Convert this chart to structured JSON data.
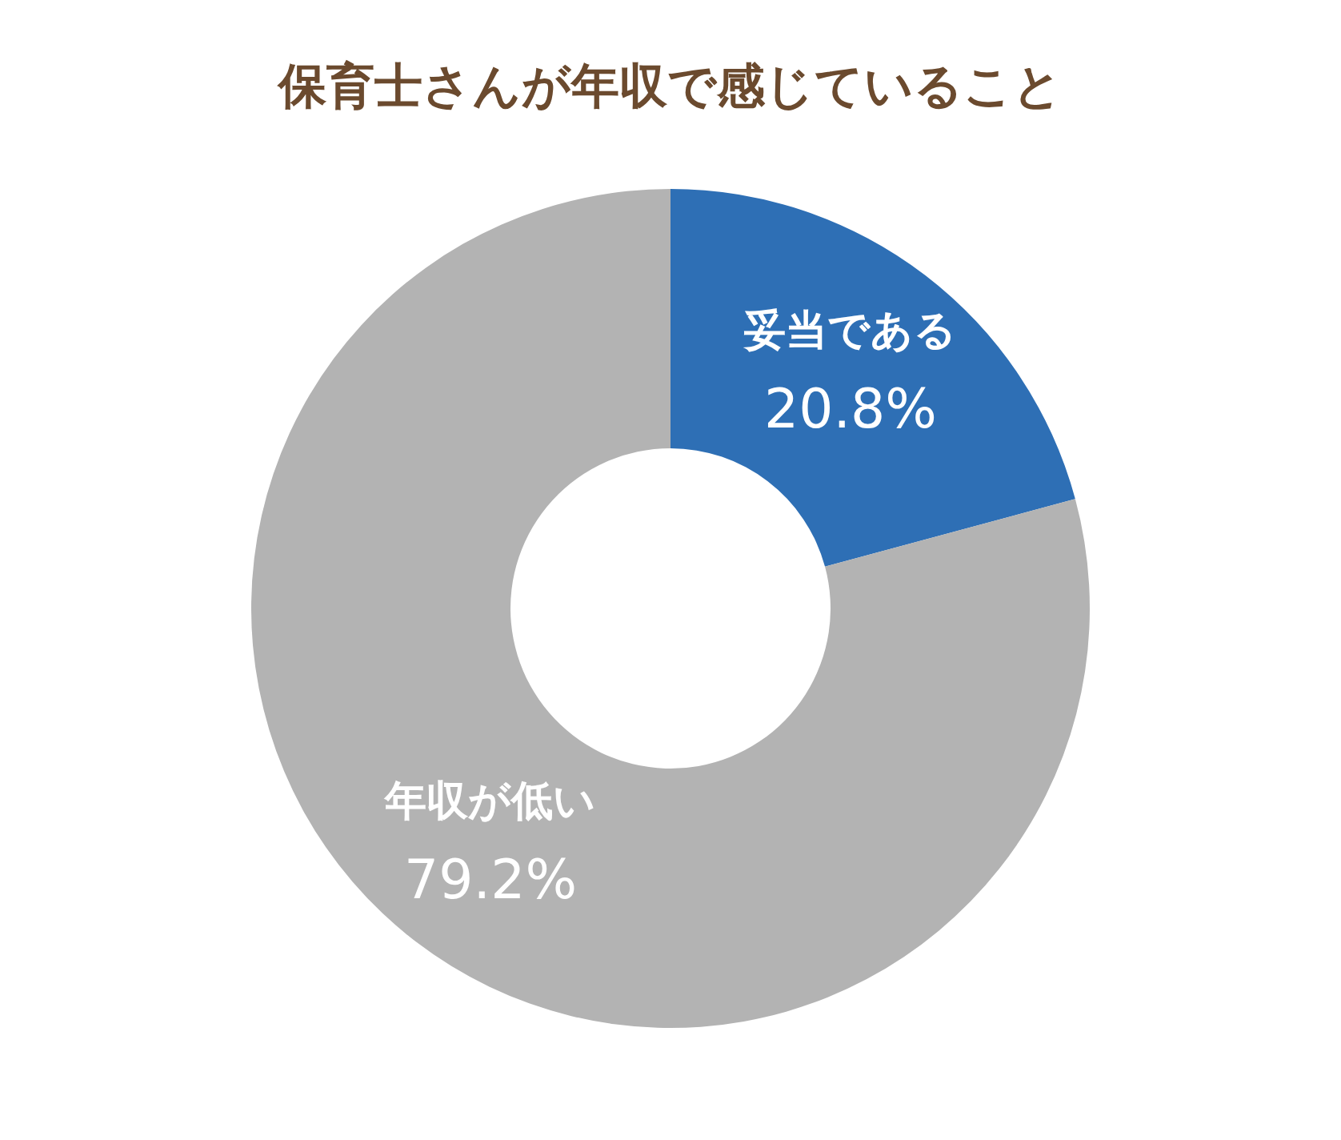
{
  "chart_data": {
    "type": "donut",
    "title": "保育士さんが年収で感じていること",
    "categories": [
      "妥当である",
      "年収が低い"
    ],
    "values": [
      20.8,
      79.2
    ],
    "colors": [
      "#2e6fb5",
      "#b3b3b3"
    ],
    "value_labels": [
      "20.8%",
      "79.2%"
    ],
    "legend": false
  }
}
